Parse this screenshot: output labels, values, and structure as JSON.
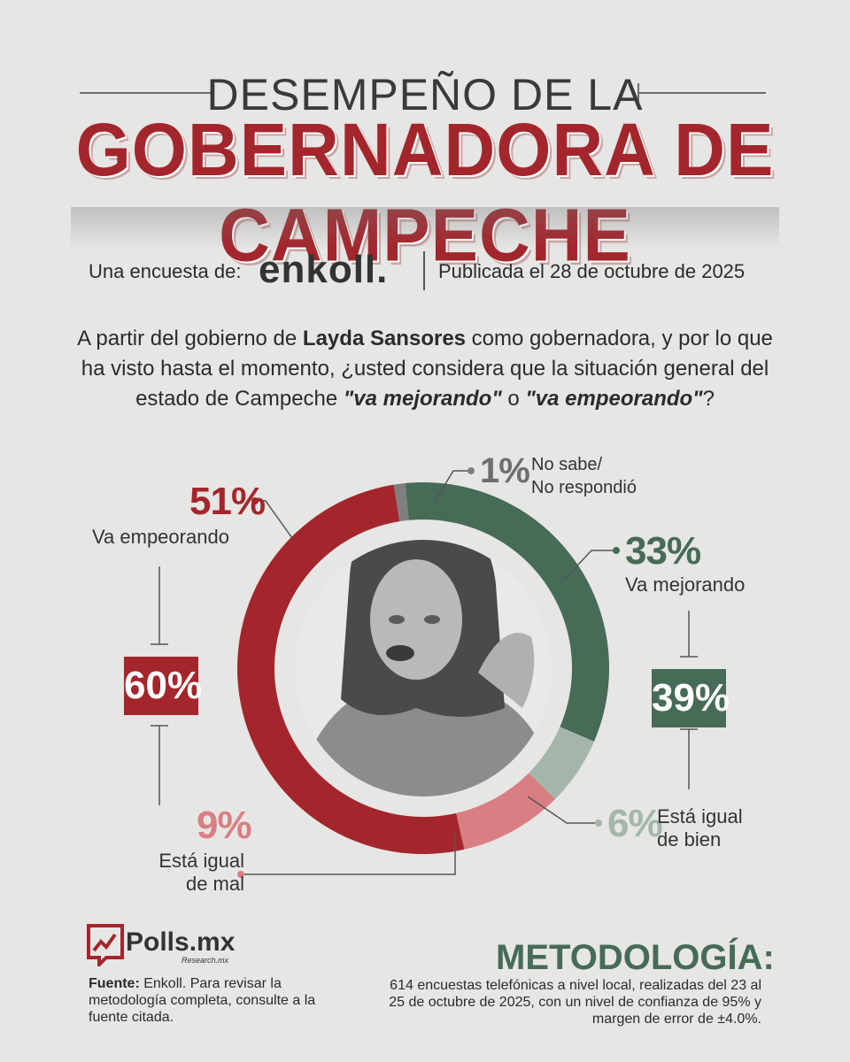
{
  "header": {
    "title_line1": "DESEMPEÑO DE LA",
    "title_line2": "GOBERNADORA DE CAMPECHE"
  },
  "source_line": {
    "encuesta_label": "Una encuesta de:",
    "brand": "enkoll.",
    "published": "Publicada el 28 de octubre de 2025"
  },
  "question": {
    "part1": "A partir del gobierno de ",
    "name": "Layda Sansores",
    "part2": " como gobernadora, y por lo que ha visto hasta el momento, ¿usted considera que la situación general del estado de Campeche ",
    "opt1": "\"va mejorando\"",
    "part3": " o ",
    "opt2": "\"va empeorando\"",
    "part4": "?"
  },
  "chart_data": {
    "type": "pie",
    "style": "donut",
    "series": [
      {
        "name": "No sabe/ No respondió",
        "value": 1,
        "label": "1%",
        "color": "#7f7f7f"
      },
      {
        "name": "Va mejorando",
        "value": 33,
        "label": "33%",
        "color": "#466b56"
      },
      {
        "name": "Está igual de bien",
        "value": 6,
        "label": "6%",
        "color": "#a4b6a9"
      },
      {
        "name": "Está igual de mal",
        "value": 9,
        "label": "9%",
        "color": "#d97f83"
      },
      {
        "name": "Va empeorando",
        "value": 51,
        "label": "51%",
        "color": "#a3262c"
      }
    ],
    "groups": [
      {
        "label": "60%",
        "value": 60,
        "color": "#a3262c"
      },
      {
        "label": "39%",
        "value": 39,
        "color": "#466b56"
      }
    ],
    "labels": {
      "nosabe_line1": "No sabe/",
      "nosabe_line2": "No respondió",
      "mejorando": "Va mejorando",
      "empeorando": "Va empeorando",
      "bien_line1": "Está igual",
      "bien_line2": "de bien",
      "mal_line1": "Está igual",
      "mal_line2": "de mal"
    }
  },
  "footer": {
    "logo_text": "Polls.mx",
    "logo_sub": "Research.mx",
    "fuente_label": "Fuente:",
    "fuente_text": " Enkoll. Para revisar la metodología completa, consulte a la fuente citada.",
    "meto_title": "METODOLOGÍA:",
    "meto_text": "614 encuestas telefónicas a nivel local, realizadas del 23 al 25 de octubre de 2025, con un nivel de confianza de 95% y margen de error de ±4.0%."
  },
  "colors": {
    "red": "#a3262c",
    "green": "#466b56",
    "pink": "#d97f83",
    "lightgreen": "#a4b6a9",
    "grey": "#7f7f7f"
  }
}
